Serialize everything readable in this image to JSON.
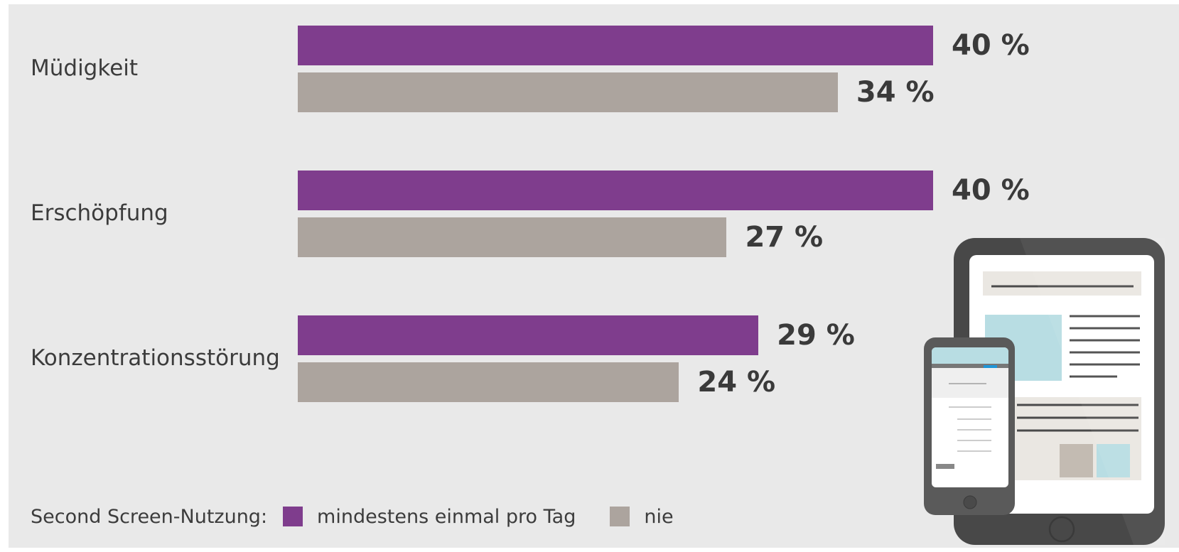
{
  "chart_data": {
    "type": "bar",
    "orientation": "horizontal",
    "categories": [
      "Müdigkeit",
      "Erschöpfung",
      "Konzentrationsstörung"
    ],
    "series": [
      {
        "name": "mindestens einmal pro Tag",
        "color": "#7f3d8d",
        "values": [
          40,
          40,
          29
        ],
        "labels": [
          "40 %",
          "40 %",
          "29 %"
        ]
      },
      {
        "name": "nie",
        "color": "#aca49e",
        "values": [
          34,
          27,
          24
        ],
        "labels": [
          "34 %",
          "27 %",
          "24 %"
        ]
      }
    ],
    "value_unit": "%",
    "xlim": [
      0,
      40
    ],
    "grid": false,
    "legend": {
      "title": "Second Screen-Nutzung:",
      "placement": "bottom-left"
    }
  },
  "colors": {
    "background": "#e9e9e9",
    "purple": "#7f3d8d",
    "taupe": "#aca49e"
  },
  "illustration": {
    "icons": [
      "tablet-icon",
      "smartphone-icon"
    ]
  }
}
